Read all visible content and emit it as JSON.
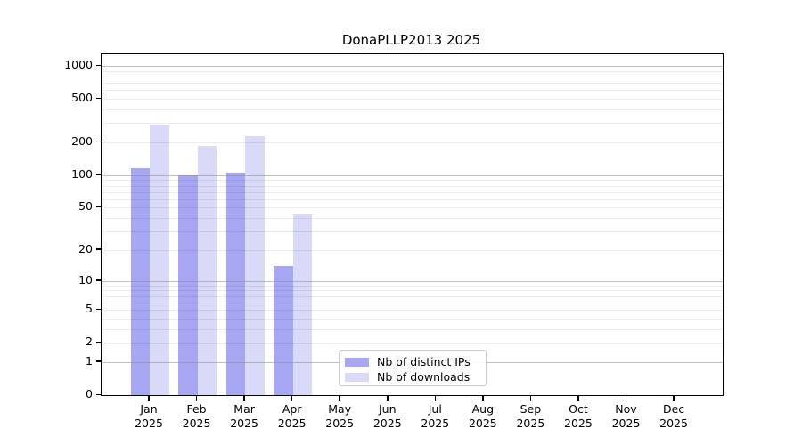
{
  "title": "DonaPLLP2013 2025",
  "chart_data": {
    "type": "bar",
    "title": "DonaPLLP2013 2025",
    "categories": [
      {
        "month": "Jan",
        "year": "2025"
      },
      {
        "month": "Feb",
        "year": "2025"
      },
      {
        "month": "Mar",
        "year": "2025"
      },
      {
        "month": "Apr",
        "year": "2025"
      },
      {
        "month": "May",
        "year": "2025"
      },
      {
        "month": "Jun",
        "year": "2025"
      },
      {
        "month": "Jul",
        "year": "2025"
      },
      {
        "month": "Aug",
        "year": "2025"
      },
      {
        "month": "Sep",
        "year": "2025"
      },
      {
        "month": "Oct",
        "year": "2025"
      },
      {
        "month": "Nov",
        "year": "2025"
      },
      {
        "month": "Dec",
        "year": "2025"
      }
    ],
    "series": [
      {
        "name": "Nb of distinct IPs",
        "color": "#a6a6f2",
        "values": [
          115,
          100,
          105,
          14,
          0,
          0,
          0,
          0,
          0,
          0,
          0,
          0
        ]
      },
      {
        "name": "Nb of downloads",
        "color": "#d9d9f8",
        "values": [
          290,
          185,
          228,
          43,
          0,
          0,
          0,
          0,
          0,
          0,
          0,
          0
        ]
      }
    ],
    "xlabel": "",
    "ylabel": "",
    "yscale": "log1p",
    "y_ticks": [
      0,
      1,
      2,
      5,
      10,
      20,
      50,
      100,
      200,
      500,
      1000
    ],
    "y_minor_gridlines": [
      2,
      3,
      4,
      5,
      6,
      7,
      8,
      9,
      20,
      30,
      40,
      50,
      60,
      70,
      80,
      90,
      200,
      300,
      400,
      500,
      600,
      700,
      800,
      900
    ],
    "y_major_gridlines": [
      1,
      10,
      100,
      1000
    ],
    "ylim": [
      0,
      1276
    ],
    "grid": "horizontal",
    "legend_position": "lower center",
    "axis_color": "#000000",
    "minor_grid_color": "#ececec",
    "major_grid_color": "#b3b3b3"
  }
}
